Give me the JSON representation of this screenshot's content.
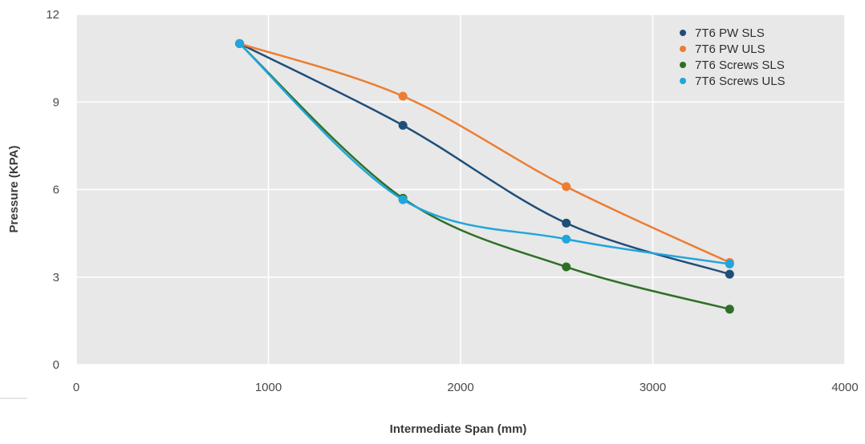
{
  "chart_data": {
    "type": "scatter",
    "title": "",
    "xlabel": "Intermediate Span (mm)",
    "ylabel": "Pressure (KPA)",
    "xlim": [
      0,
      4000
    ],
    "ylim": [
      0,
      12
    ],
    "x_ticks": [
      0,
      1000,
      2000,
      3000,
      4000
    ],
    "y_ticks": [
      0,
      3,
      6,
      9,
      12
    ],
    "x_tick_labels": [
      "0",
      "1000",
      "2000",
      "3000",
      "4000"
    ],
    "y_tick_labels": [
      "0",
      "3",
      "6",
      "9",
      "12"
    ],
    "grid": true,
    "legend_position": "top-right",
    "smoothed_lines": true,
    "series": [
      {
        "name": "7T6 PW SLS",
        "color": "#1f4e79",
        "x": [
          850,
          1700,
          2550,
          3400
        ],
        "y": [
          11.0,
          8.2,
          4.85,
          3.1
        ]
      },
      {
        "name": "7T6 PW ULS",
        "color": "#ed7d31",
        "x": [
          850,
          1700,
          2550,
          3400
        ],
        "y": [
          11.0,
          9.2,
          6.1,
          3.5
        ]
      },
      {
        "name": "7T6 Screws SLS",
        "color": "#2e6f26",
        "x": [
          850,
          1700,
          2550,
          3400
        ],
        "y": [
          11.0,
          5.7,
          3.35,
          1.9
        ]
      },
      {
        "name": "7T6 Screws ULS",
        "color": "#21a5dd",
        "x": [
          850,
          1700,
          2550,
          3400
        ],
        "y": [
          11.0,
          5.65,
          4.3,
          3.45
        ]
      }
    ]
  },
  "colors": {
    "plot_background": "#e8e8e8",
    "gridline": "#ffffff",
    "axis_text": "#4a4a4a"
  }
}
